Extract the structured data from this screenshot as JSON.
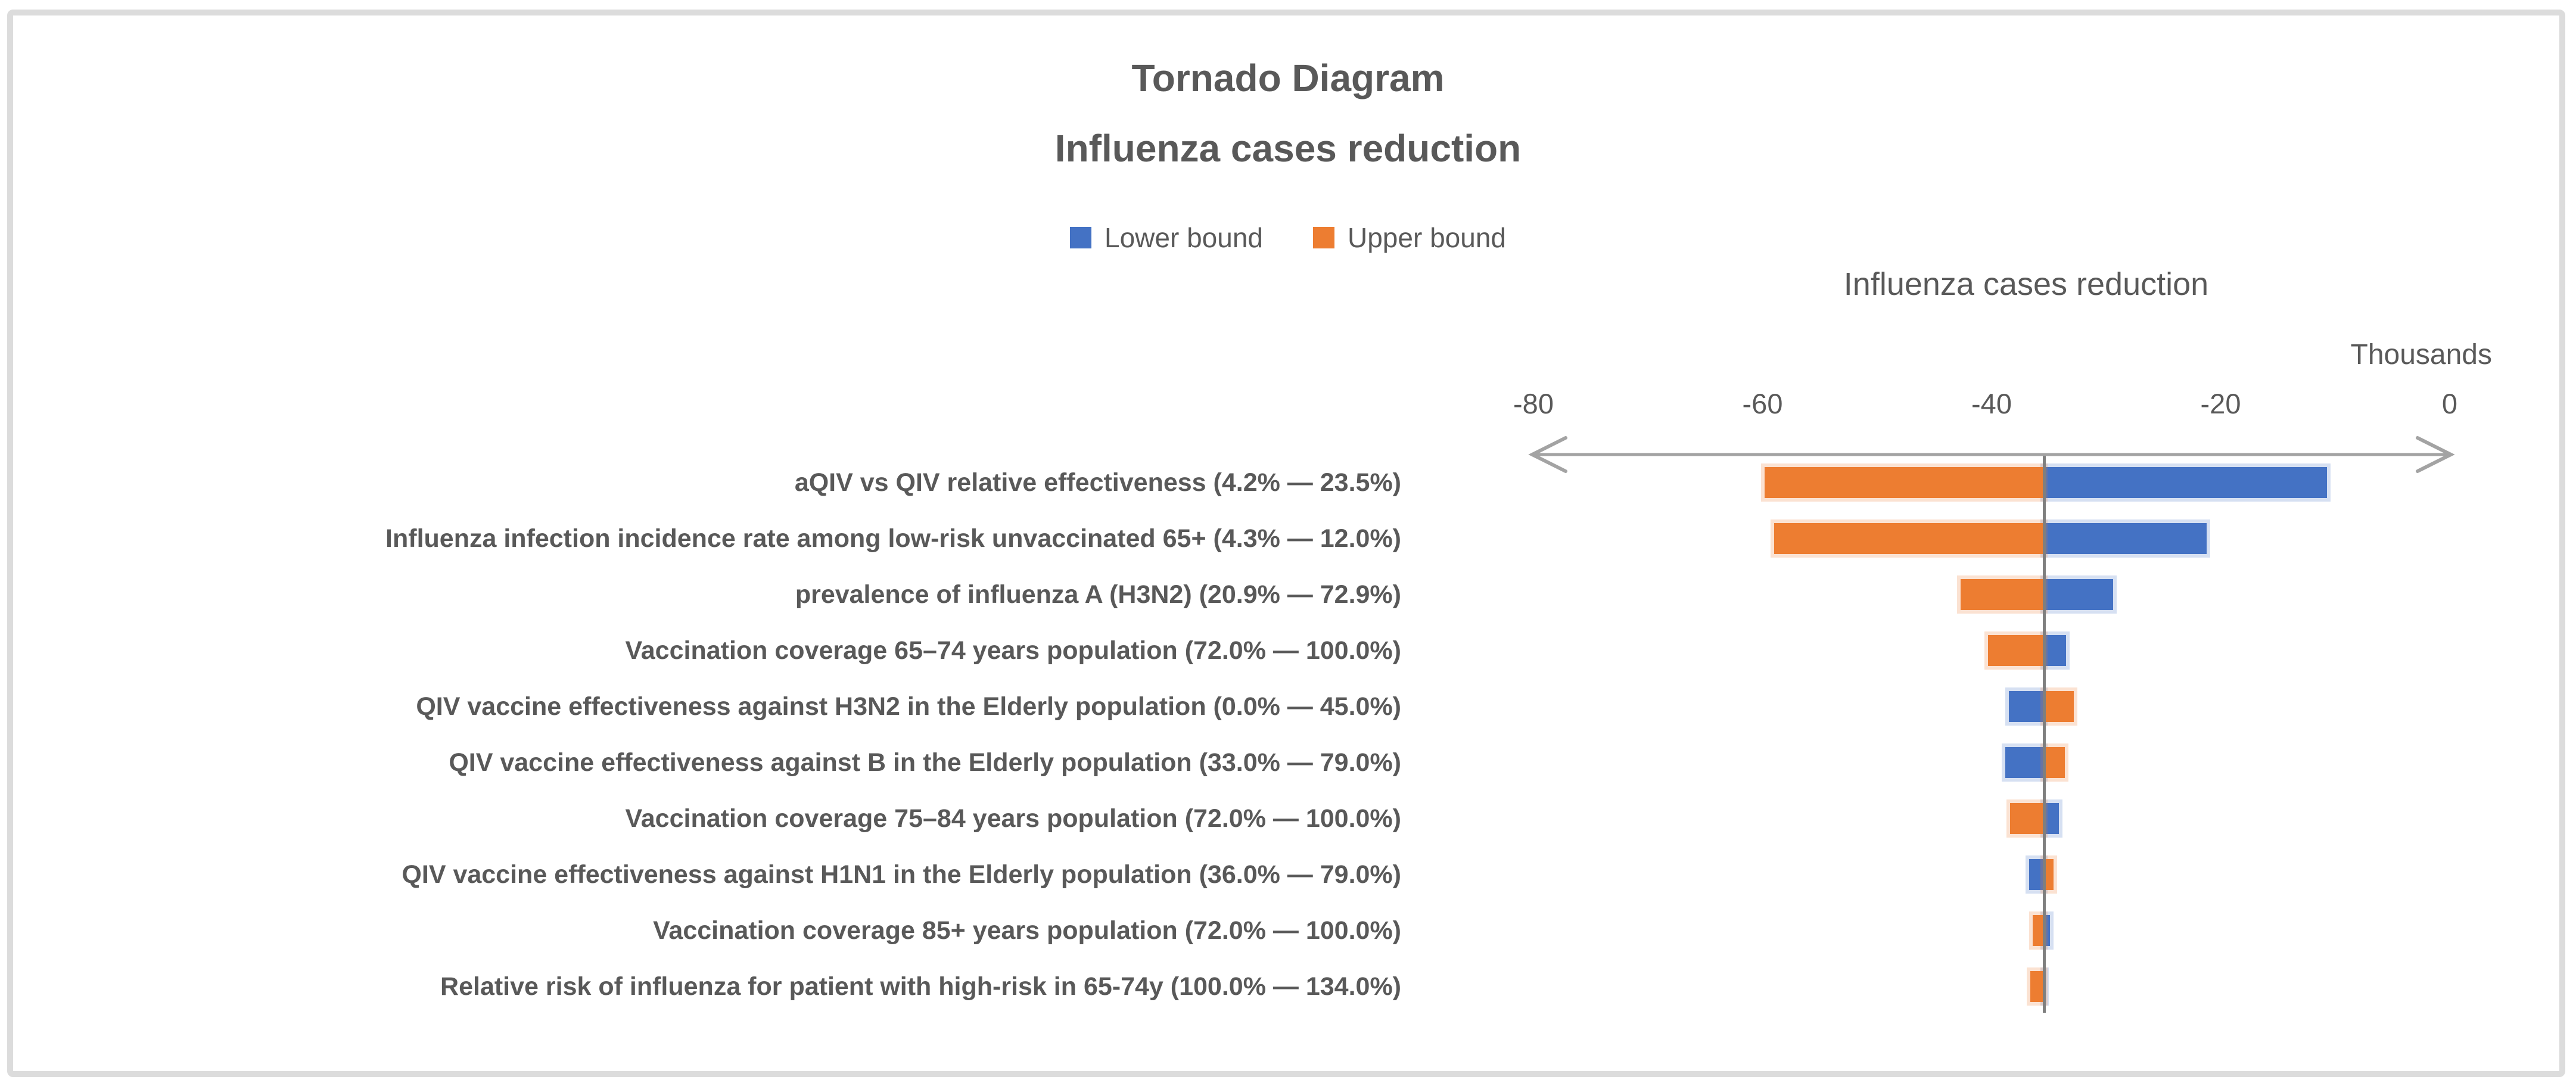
{
  "chart_data": {
    "type": "bar",
    "subtype": "tornado",
    "orientation": "horizontal",
    "title_line1": "Tornado Diagram",
    "title_line2": "Influenza cases reduction",
    "x_axis_title": "Influenza cases reduction",
    "x_units": "Thousands",
    "values_unit": "thousands of influenza cases reduced",
    "x_ticks": [
      -80,
      -60,
      -40,
      -20,
      0
    ],
    "xlim": [
      -88,
      4
    ],
    "grid": false,
    "legend_position": "top-center",
    "base_value": -35.4,
    "legend_items": [
      {
        "name": "lower_bound",
        "label": "Lower bound",
        "color": "#4472C4"
      },
      {
        "name": "upper_bound",
        "label": "Upper bound",
        "color": "#ED7D31"
      }
    ],
    "colors": {
      "lower_bound": "#4472C4",
      "upper_bound": "#ED7D31",
      "axis_line": "#a3a3a3",
      "base_line": "#7f7f7f",
      "text": "#595959",
      "frame_border": "#dcdcdc"
    },
    "rows": [
      {
        "label": "aQIV vs QIV relative effectiveness (4.2% — 23.5%)",
        "lower_bound": -10.7,
        "upper_bound": -59.8
      },
      {
        "label": "Influenza infection incidence rate among low-risk unvaccinated 65+ (4.3% — 12.0%)",
        "lower_bound": -21.2,
        "upper_bound": -59.0
      },
      {
        "label": "prevalence of influenza A (H3N2) (20.9% — 72.9%)",
        "lower_bound": -29.4,
        "upper_bound": -42.7
      },
      {
        "label": "Vaccination coverage 65–74 years population (72.0% — 100.0%)",
        "lower_bound": -33.5,
        "upper_bound": -40.3
      },
      {
        "label": "QIV vaccine effectiveness against H3N2 in the Elderly population (0.0% — 45.0%)",
        "lower_bound": -38.5,
        "upper_bound": -32.8
      },
      {
        "label": "QIV vaccine effectiveness against B in the Elderly population (33.0% — 79.0%)",
        "lower_bound": -38.8,
        "upper_bound": -33.6
      },
      {
        "label": "Vaccination coverage 75–84 years population (72.0% — 100.0%)",
        "lower_bound": -34.1,
        "upper_bound": -38.4
      },
      {
        "label": "QIV vaccine effectiveness against H1N1 in the Elderly population (36.0% — 79.0%)",
        "lower_bound": -36.7,
        "upper_bound": -34.6
      },
      {
        "label": "Vaccination coverage 85+ years population (72.0% — 100.0%)",
        "lower_bound": -34.9,
        "upper_bound": -36.4
      },
      {
        "label": "Relative risk of influenza for patient with high-risk in 65-74y (100.0% — 134.0%)",
        "lower_bound": -35.3,
        "upper_bound": -36.6
      }
    ]
  }
}
